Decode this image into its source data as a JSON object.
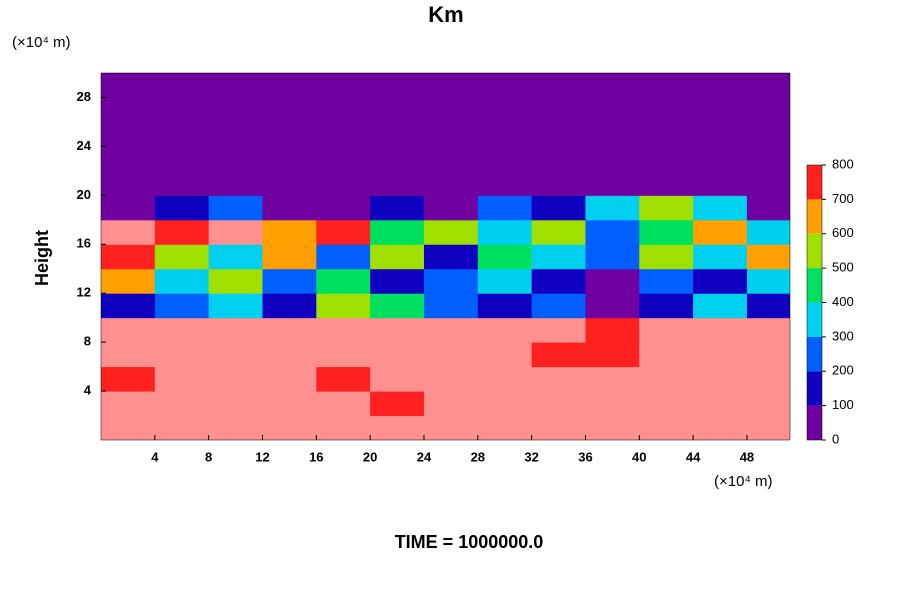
{
  "chart_data": {
    "type": "heatmap",
    "title": "Km",
    "y_unit": "(×10⁴ m)",
    "x_unit": "(×10⁴ m)",
    "y_label": "Height",
    "footer": "TIME = 1000000.0",
    "xlim": [
      0,
      51.2
    ],
    "ylim": [
      0,
      30
    ],
    "xticks": [
      4,
      8,
      12,
      16,
      20,
      24,
      28,
      32,
      36,
      40,
      44,
      48
    ],
    "yticks": [
      4,
      8,
      12,
      16,
      20,
      24,
      28
    ],
    "x": [
      2,
      6,
      10,
      14,
      18,
      22,
      26,
      30,
      34,
      38,
      42,
      46,
      50
    ],
    "y": [
      1,
      3,
      5,
      7,
      9,
      11,
      13,
      15,
      17,
      19,
      21,
      23,
      25,
      27,
      29
    ],
    "z": [
      [
        800,
        800,
        800,
        800,
        800,
        800,
        800,
        800,
        800,
        800,
        800,
        800,
        800
      ],
      [
        800,
        800,
        800,
        800,
        800,
        700,
        800,
        800,
        800,
        800,
        800,
        800,
        800
      ],
      [
        700,
        800,
        800,
        800,
        700,
        800,
        800,
        800,
        800,
        800,
        800,
        800,
        800
      ],
      [
        800,
        800,
        800,
        800,
        800,
        800,
        800,
        800,
        700,
        700,
        800,
        800,
        800
      ],
      [
        800,
        800,
        800,
        800,
        800,
        800,
        800,
        800,
        800,
        700,
        800,
        800,
        800
      ],
      [
        100,
        200,
        300,
        100,
        500,
        400,
        200,
        100,
        200,
        0,
        100,
        300,
        100
      ],
      [
        600,
        300,
        500,
        200,
        400,
        100,
        200,
        300,
        100,
        0,
        200,
        100,
        300
      ],
      [
        700,
        500,
        300,
        600,
        200,
        500,
        100,
        400,
        300,
        200,
        500,
        300,
        600
      ],
      [
        800,
        700,
        800,
        600,
        700,
        400,
        500,
        300,
        500,
        200,
        400,
        600,
        300
      ],
      [
        0,
        100,
        200,
        0,
        0,
        100,
        0,
        200,
        100,
        300,
        500,
        300,
        0
      ],
      [
        0,
        0,
        0,
        0,
        0,
        0,
        0,
        0,
        0,
        0,
        0,
        0,
        0
      ],
      [
        0,
        0,
        0,
        0,
        0,
        0,
        0,
        0,
        0,
        0,
        0,
        0,
        0
      ],
      [
        0,
        0,
        0,
        0,
        0,
        0,
        0,
        0,
        0,
        0,
        0,
        0,
        0
      ],
      [
        0,
        0,
        0,
        0,
        0,
        0,
        0,
        0,
        0,
        0,
        0,
        0,
        0
      ],
      [
        0,
        0,
        0,
        0,
        0,
        0,
        0,
        0,
        0,
        0,
        0,
        0,
        0
      ]
    ],
    "levels": [
      0,
      100,
      200,
      300,
      400,
      500,
      600,
      700,
      800
    ],
    "colors": [
      "#7000a0",
      "#1000c0",
      "#0060ff",
      "#00d0f0",
      "#00e060",
      "#a0e000",
      "#ffa000",
      "#ff2020"
    ],
    "over_color": "#ff9090"
  }
}
